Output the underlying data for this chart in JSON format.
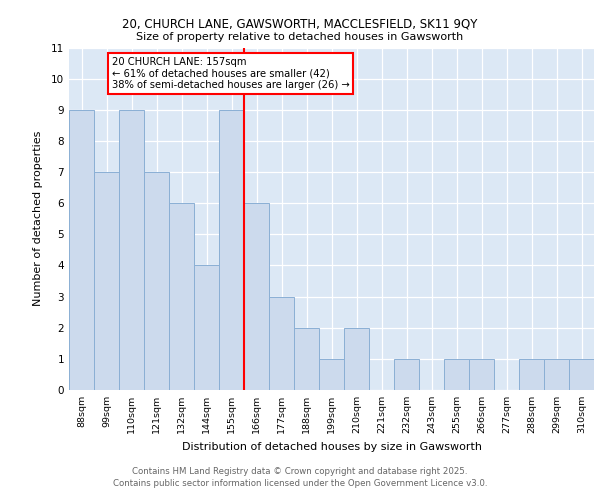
{
  "title_line1": "20, CHURCH LANE, GAWSWORTH, MACCLESFIELD, SK11 9QY",
  "title_line2": "Size of property relative to detached houses in Gawsworth",
  "xlabel": "Distribution of detached houses by size in Gawsworth",
  "ylabel": "Number of detached properties",
  "categories": [
    "88sqm",
    "99sqm",
    "110sqm",
    "121sqm",
    "132sqm",
    "144sqm",
    "155sqm",
    "166sqm",
    "177sqm",
    "188sqm",
    "199sqm",
    "210sqm",
    "221sqm",
    "232sqm",
    "243sqm",
    "255sqm",
    "266sqm",
    "277sqm",
    "288sqm",
    "299sqm",
    "310sqm"
  ],
  "values": [
    9,
    7,
    9,
    7,
    6,
    4,
    9,
    6,
    3,
    2,
    1,
    2,
    0,
    1,
    0,
    1,
    1,
    0,
    1,
    1,
    1
  ],
  "bar_color": "#ccdaed",
  "bar_edge_color": "#8aafd4",
  "highlight_line_index": 6,
  "highlight_label": "20 CHURCH LANE: 157sqm",
  "pct_smaller": "61% of detached houses are smaller (42)",
  "pct_larger": "38% of semi-detached houses are larger (26)",
  "ylim": [
    0,
    11
  ],
  "yticks": [
    0,
    1,
    2,
    3,
    4,
    5,
    6,
    7,
    8,
    9,
    10,
    11
  ],
  "background_color": "#dce8f5",
  "footer_line1": "Contains HM Land Registry data © Crown copyright and database right 2025.",
  "footer_line2": "Contains public sector information licensed under the Open Government Licence v3.0."
}
